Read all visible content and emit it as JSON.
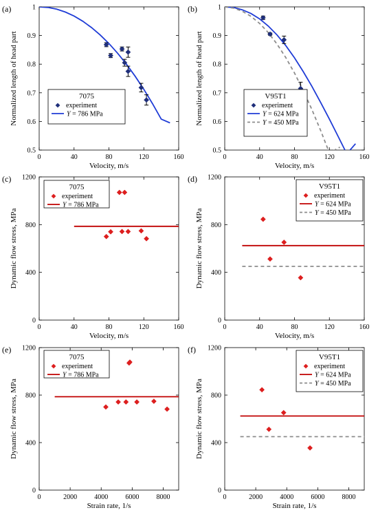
{
  "chart_data": [
    {
      "panel": "(a)",
      "type": "scatter",
      "xlabel": "Velocity, m/s",
      "ylabel": "Normalized length of head part",
      "xlim": [
        0,
        160
      ],
      "ylim": [
        0.5,
        1
      ],
      "xticks": [
        0,
        40,
        80,
        120,
        160
      ],
      "yticks": [
        0.5,
        0.6,
        0.7,
        0.8,
        0.9,
        1
      ],
      "yticklabels": [
        "0.5",
        "0.6",
        "0.7",
        "0.8",
        "0.9",
        "1"
      ],
      "legend_title": "7075",
      "points": {
        "name": "experiment",
        "color": "#1f2f7a",
        "marker": "diamond",
        "x": [
          77,
          82,
          95,
          98,
          102,
          102,
          117,
          123
        ],
        "y": [
          0.868,
          0.83,
          0.853,
          0.805,
          0.842,
          0.775,
          0.718,
          0.675
        ],
        "err": [
          0.007,
          0.007,
          0.007,
          0.012,
          0.018,
          0.018,
          0.015,
          0.018
        ]
      },
      "lines": [
        {
          "name": "Y = 786 MPa",
          "color": "#1f3cd6",
          "dash": "none",
          "x": [
            0,
            10,
            20,
            30,
            40,
            50,
            60,
            70,
            80,
            90,
            100,
            110,
            120,
            130,
            140,
            150
          ],
          "y": [
            1.0,
            0.998,
            0.992,
            0.982,
            0.968,
            0.95,
            0.928,
            0.902,
            0.872,
            0.838,
            0.8,
            0.758,
            0.712,
            0.662,
            0.608,
            0.595
          ]
        }
      ]
    },
    {
      "panel": "(b)",
      "type": "scatter",
      "xlabel": "Velocity, m/s",
      "ylabel": "Normalized length of head part",
      "xlim": [
        0,
        160
      ],
      "ylim": [
        0.5,
        1
      ],
      "xticks": [
        0,
        40,
        80,
        120,
        160
      ],
      "yticks": [
        0.5,
        0.6,
        0.7,
        0.8,
        0.9,
        1
      ],
      "yticklabels": [
        "0.5",
        "0.6",
        "0.7",
        "0.8",
        "0.9",
        "1"
      ],
      "legend_title": "V95T1",
      "points": {
        "name": "experiment",
        "color": "#1f2f7a",
        "marker": "diamond",
        "x": [
          44,
          52,
          68,
          87
        ],
        "y": [
          0.962,
          0.905,
          0.885,
          0.715
        ],
        "err": [
          0.006,
          0.004,
          0.013,
          0.022
        ]
      },
      "lines": [
        {
          "name": "Y = 624 MPa",
          "color": "#1f3cd6",
          "dash": "none",
          "x": [
            0,
            10,
            20,
            30,
            40,
            50,
            60,
            70,
            80,
            90,
            100,
            110,
            120,
            130,
            140,
            150
          ],
          "y": [
            1.0,
            0.998,
            0.99,
            0.977,
            0.958,
            0.933,
            0.902,
            0.865,
            0.822,
            0.774,
            0.722,
            0.666,
            0.608,
            0.548,
            0.487,
            0.522
          ]
        },
        {
          "name": "Y = 450 MPa",
          "color": "#8c8c8c",
          "dash": "5,4",
          "x": [
            0,
            10,
            20,
            30,
            40,
            50,
            60,
            70,
            80,
            90,
            100,
            110,
            120,
            132
          ],
          "y": [
            1.0,
            0.996,
            0.985,
            0.967,
            0.942,
            0.91,
            0.87,
            0.823,
            0.769,
            0.708,
            0.641,
            0.568,
            0.49,
            0.51
          ]
        }
      ]
    },
    {
      "panel": "(c)",
      "type": "scatter",
      "xlabel": "Velocity, m/s",
      "ylabel": "Dynamic flow stress, MPa",
      "xlim": [
        0,
        160
      ],
      "ylim": [
        0,
        1200
      ],
      "xticks": [
        0,
        40,
        80,
        120,
        160
      ],
      "yticks": [
        0,
        400,
        800,
        1200
      ],
      "yticklabels": [
        "0",
        "400",
        "800",
        "1200"
      ],
      "legend_title": "7075",
      "points": {
        "name": "experiment",
        "color": "#dd1f1f",
        "marker": "diamond",
        "x": [
          77,
          82,
          92,
          95,
          98,
          102,
          117,
          123
        ],
        "y": [
          700,
          740,
          1070,
          742,
          1070,
          742,
          748,
          682
        ]
      },
      "lines": [
        {
          "name": "Y = 786 MPa",
          "color": "#c00000",
          "dash": "none",
          "x": [
            40,
            160
          ],
          "y": [
            786,
            786
          ]
        }
      ]
    },
    {
      "panel": "(d)",
      "type": "scatter",
      "xlabel": "Velocity, m/s",
      "ylabel": "Dynamic flow stress, MPa",
      "xlim": [
        0,
        160
      ],
      "ylim": [
        0,
        1200
      ],
      "xticks": [
        0,
        40,
        80,
        120,
        160
      ],
      "yticks": [
        0,
        400,
        800,
        1200
      ],
      "yticklabels": [
        "0",
        "400",
        "800",
        "1200"
      ],
      "legend_title": "V95T1",
      "points": {
        "name": "experiment",
        "color": "#dd1f1f",
        "marker": "diamond",
        "x": [
          44,
          52,
          68,
          87
        ],
        "y": [
          845,
          512,
          652,
          355
        ]
      },
      "lines": [
        {
          "name": "Y = 624 MPa",
          "color": "#c00000",
          "dash": "none",
          "x": [
            20,
            160
          ],
          "y": [
            624,
            624
          ]
        },
        {
          "name": "Y = 450 MPa",
          "color": "#8c8c8c",
          "dash": "5,4",
          "x": [
            20,
            160
          ],
          "y": [
            450,
            450
          ]
        }
      ]
    },
    {
      "panel": "(e)",
      "type": "scatter",
      "xlabel": "Strain rate, 1/s",
      "ylabel": "Dynamic flow stress, MPa",
      "xlim": [
        0,
        9000
      ],
      "ylim": [
        0,
        1200
      ],
      "xticks": [
        0,
        2000,
        4000,
        6000,
        8000
      ],
      "yticks": [
        0,
        400,
        800,
        1200
      ],
      "yticklabels": [
        "0",
        "400",
        "800",
        "1200"
      ],
      "legend_title": "7075",
      "points": {
        "name": "experiment",
        "color": "#dd1f1f",
        "marker": "diamond",
        "x": [
          4300,
          5100,
          5600,
          5800,
          5850,
          6300,
          7400,
          8250
        ],
        "y": [
          700,
          742,
          742,
          1070,
          1078,
          742,
          748,
          682
        ]
      },
      "lines": [
        {
          "name": "Y = 786 MPa",
          "color": "#c00000",
          "dash": "none",
          "x": [
            1000,
            9000
          ],
          "y": [
            786,
            786
          ]
        }
      ]
    },
    {
      "panel": "(f)",
      "type": "scatter",
      "xlabel": "Strain rate, 1/s",
      "ylabel": "Dynamic flow stress, MPa",
      "xlim": [
        0,
        9000
      ],
      "ylim": [
        0,
        1200
      ],
      "xticks": [
        0,
        2000,
        4000,
        6000,
        8000
      ],
      "yticks": [
        0,
        400,
        800,
        1200
      ],
      "yticklabels": [
        "0",
        "400",
        "800",
        "1200"
      ],
      "legend_title": "V95T1",
      "points": {
        "name": "experiment",
        "color": "#dd1f1f",
        "marker": "diamond",
        "x": [
          2400,
          2850,
          3800,
          5500
        ],
        "y": [
          845,
          512,
          652,
          355
        ]
      },
      "lines": [
        {
          "name": "Y = 624 MPa",
          "color": "#c00000",
          "dash": "none",
          "x": [
            1000,
            9000
          ],
          "y": [
            624,
            624
          ]
        },
        {
          "name": "Y = 450 MPa",
          "color": "#8c8c8c",
          "dash": "5,4",
          "x": [
            1000,
            9000
          ],
          "y": [
            450,
            450
          ]
        }
      ]
    }
  ]
}
